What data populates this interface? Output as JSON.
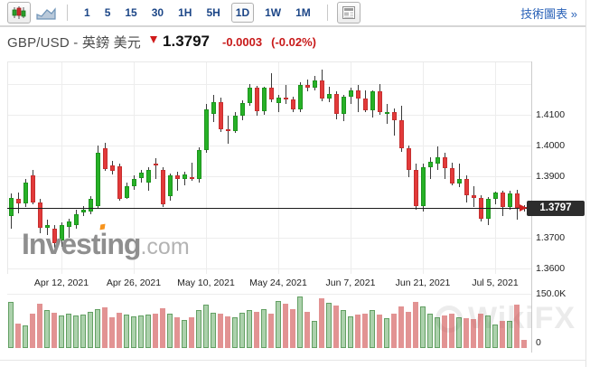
{
  "toolbar": {
    "chart_type": [
      {
        "name": "candlestick",
        "active": true
      },
      {
        "name": "area-line",
        "active": false
      }
    ],
    "timeframes": [
      "1",
      "5",
      "15",
      "30",
      "1H",
      "5H",
      "1D",
      "1W",
      "1M"
    ],
    "active_timeframe": "1D",
    "tech_chart_link": "技術圖表 »"
  },
  "header": {
    "instrument": "GBP/USD - 英鎊 美元",
    "direction": "down",
    "last_price": "1.3797",
    "change": "-0.0003",
    "change_percent": "(-0.02%)"
  },
  "watermarks": {
    "main": "Invest",
    "main_i": "i",
    "main_tail": "ng",
    "main_suffix": ".com",
    "secondary": "WikiFX"
  },
  "colors": {
    "up": "#27b127",
    "up_border": "#1d941d",
    "down": "#e23a3a",
    "down_border": "#c62f2f",
    "wick": "#3a3a3a",
    "vol_up": "rgba(48,140,48,0.40)",
    "vol_up_border": "rgba(40,120,40,0.55)",
    "vol_down": "rgba(206,75,75,0.60)",
    "grid": "#ededed",
    "axis_line": "#cccccc",
    "frame": "#e8e8e8",
    "price_line": "#1a1a1a",
    "tag_bg": "#2d2d2d",
    "accent_red": "#cf1f1f"
  },
  "chart_data": {
    "type": "candlestick+volume",
    "instrument": "GBP/USD",
    "interval": "1D",
    "price_line": {
      "value": 1.3797,
      "label": "1.3797"
    },
    "y_ticks": [
      {
        "label": "1.4100",
        "value": 1.41
      },
      {
        "label": "1.4000",
        "value": 1.4
      },
      {
        "label": "1.3900",
        "value": 1.39
      },
      {
        "label": "1.3700",
        "value": 1.37
      },
      {
        "label": "1.3600",
        "value": 1.36
      }
    ],
    "gridline_values": [
      1.42,
      1.41,
      1.4,
      1.39,
      1.37,
      1.36
    ],
    "x_ticks": [
      {
        "label": "Apr 12, 2021",
        "index": 7
      },
      {
        "label": "Apr 26, 2021",
        "index": 17
      },
      {
        "label": "May 10, 2021",
        "index": 27
      },
      {
        "label": "May 24, 2021",
        "index": 37
      },
      {
        "label": "Jun 7, 2021",
        "index": 47
      },
      {
        "label": "Jun 21, 2021",
        "index": 57
      },
      {
        "label": "Jul 5, 2021",
        "index": 67
      }
    ],
    "volume_ticks": [
      {
        "label": "150.0K",
        "value": 150
      },
      {
        "label": "0",
        "value": 0
      }
    ],
    "volume_axis_max_k": 150,
    "candles": [
      [
        "Apr 1",
        1.377,
        1.3843,
        1.373,
        1.3828,
        128
      ],
      [
        "Apr 2",
        1.3825,
        1.3848,
        1.378,
        1.3812,
        68
      ],
      [
        "Apr 5",
        1.3812,
        1.389,
        1.38,
        1.3879,
        62
      ],
      [
        "Apr 6",
        1.3903,
        1.392,
        1.3808,
        1.3815,
        96
      ],
      [
        "Apr 7",
        1.3815,
        1.3826,
        1.3715,
        1.3732,
        122
      ],
      [
        "Apr 8",
        1.3732,
        1.3758,
        1.371,
        1.374,
        104
      ],
      [
        "Apr 9",
        1.3728,
        1.3742,
        1.3668,
        1.3682,
        98
      ],
      [
        "Apr 12",
        1.369,
        1.3751,
        1.367,
        1.3742,
        90
      ],
      [
        "Apr 13",
        1.3736,
        1.3762,
        1.37,
        1.3753,
        94
      ],
      [
        "Apr 14",
        1.374,
        1.379,
        1.373,
        1.3776,
        90
      ],
      [
        "Apr 15",
        1.3782,
        1.3802,
        1.377,
        1.379,
        92
      ],
      [
        "Apr 16",
        1.3786,
        1.3836,
        1.3775,
        1.3827,
        100
      ],
      [
        "Apr 19",
        1.3803,
        1.3999,
        1.3798,
        1.3976,
        108
      ],
      [
        "Apr 20",
        1.3992,
        1.4009,
        1.3918,
        1.3924,
        112
      ],
      [
        "Apr 21",
        1.3936,
        1.395,
        1.3905,
        1.3918,
        86
      ],
      [
        "Apr 22",
        1.3933,
        1.3941,
        1.382,
        1.3827,
        98
      ],
      [
        "Apr 23",
        1.383,
        1.388,
        1.3825,
        1.3867,
        92
      ],
      [
        "Apr 26",
        1.3867,
        1.3902,
        1.3855,
        1.3891,
        88
      ],
      [
        "Apr 27",
        1.3894,
        1.3922,
        1.388,
        1.3912,
        90
      ],
      [
        "Apr 28",
        1.3878,
        1.3928,
        1.3852,
        1.3921,
        92
      ],
      [
        "Apr 29",
        1.3942,
        1.396,
        1.389,
        1.3935,
        96
      ],
      [
        "Apr 30",
        1.3921,
        1.393,
        1.38,
        1.3809,
        110
      ],
      [
        "May 3",
        1.3836,
        1.391,
        1.382,
        1.3903,
        94
      ],
      [
        "May 4",
        1.3903,
        1.3915,
        1.3852,
        1.389,
        84
      ],
      [
        "May 5",
        1.389,
        1.3914,
        1.387,
        1.3905,
        78
      ],
      [
        "May 6",
        1.3898,
        1.3943,
        1.3885,
        1.3892,
        86
      ],
      [
        "May 7",
        1.3892,
        1.3995,
        1.388,
        1.3984,
        104
      ],
      [
        "May 10",
        1.3985,
        1.4135,
        1.3975,
        1.4118,
        120
      ],
      [
        "May 11",
        1.4102,
        1.4166,
        1.4075,
        1.414,
        98
      ],
      [
        "May 12",
        1.414,
        1.4155,
        1.4045,
        1.4053,
        94
      ],
      [
        "May 13",
        1.4053,
        1.4098,
        1.4005,
        1.4048,
        88
      ],
      [
        "May 14",
        1.4048,
        1.411,
        1.404,
        1.4098,
        86
      ],
      [
        "May 17",
        1.4098,
        1.4148,
        1.4082,
        1.4139,
        98
      ],
      [
        "May 18",
        1.4139,
        1.42,
        1.413,
        1.4187,
        106
      ],
      [
        "May 19",
        1.4187,
        1.4195,
        1.4098,
        1.4113,
        100
      ],
      [
        "May 20",
        1.4113,
        1.4192,
        1.41,
        1.4188,
        108
      ],
      [
        "May 21",
        1.4188,
        1.4235,
        1.4142,
        1.415,
        96
      ],
      [
        "May 24",
        1.4138,
        1.4166,
        1.411,
        1.4157,
        130
      ],
      [
        "May 25",
        1.4157,
        1.4198,
        1.4135,
        1.415,
        122
      ],
      [
        "May 26",
        1.415,
        1.4158,
        1.4108,
        1.4118,
        108
      ],
      [
        "May 27",
        1.4118,
        1.4205,
        1.411,
        1.4197,
        142
      ],
      [
        "May 28",
        1.4197,
        1.4215,
        1.4175,
        1.4188,
        100
      ],
      [
        "May 31",
        1.4188,
        1.4225,
        1.418,
        1.4213,
        76
      ],
      [
        "Jun 1",
        1.4213,
        1.4248,
        1.4145,
        1.4152,
        138
      ],
      [
        "Jun 2",
        1.4152,
        1.419,
        1.414,
        1.4169,
        126
      ],
      [
        "Jun 3",
        1.4169,
        1.4175,
        1.4085,
        1.4103,
        118
      ],
      [
        "Jun 4",
        1.4103,
        1.4165,
        1.408,
        1.4158,
        104
      ],
      [
        "Jun 7",
        1.4158,
        1.4188,
        1.4135,
        1.418,
        88
      ],
      [
        "Jun 8",
        1.418,
        1.4196,
        1.411,
        1.4154,
        92
      ],
      [
        "Jun 9",
        1.4154,
        1.418,
        1.4108,
        1.4115,
        96
      ],
      [
        "Jun 10",
        1.4115,
        1.418,
        1.4092,
        1.4176,
        106
      ],
      [
        "Jun 11",
        1.4176,
        1.42,
        1.41,
        1.4108,
        92
      ],
      [
        "Jun 14",
        1.4108,
        1.4135,
        1.407,
        1.411,
        82
      ],
      [
        "Jun 15",
        1.411,
        1.412,
        1.4032,
        1.4083,
        94
      ],
      [
        "Jun 16",
        1.4083,
        1.413,
        1.398,
        1.3992,
        114
      ],
      [
        "Jun 17",
        1.3992,
        1.4,
        1.3898,
        1.3922,
        100
      ],
      [
        "Jun 18",
        1.3922,
        1.394,
        1.379,
        1.3803,
        128
      ],
      [
        "Jun 21",
        1.3803,
        1.394,
        1.3785,
        1.3928,
        116
      ],
      [
        "Jun 22",
        1.3928,
        1.3963,
        1.389,
        1.3946,
        94
      ],
      [
        "Jun 23",
        1.394,
        1.3998,
        1.392,
        1.3962,
        86
      ],
      [
        "Jun 24",
        1.3962,
        1.3975,
        1.389,
        1.3925,
        90
      ],
      [
        "Jun 25",
        1.3925,
        1.3945,
        1.387,
        1.3877,
        94
      ],
      [
        "Jun 28",
        1.3877,
        1.394,
        1.3866,
        1.389,
        86
      ],
      [
        "Jun 29",
        1.389,
        1.3902,
        1.3815,
        1.3837,
        82
      ],
      [
        "Jun 30",
        1.3837,
        1.3868,
        1.38,
        1.383,
        80
      ],
      [
        "Jul 1",
        1.383,
        1.3838,
        1.3752,
        1.3763,
        96
      ],
      [
        "Jul 2",
        1.3763,
        1.3832,
        1.374,
        1.3826,
        90
      ],
      [
        "Jul 5",
        1.3826,
        1.385,
        1.3808,
        1.3846,
        66
      ],
      [
        "Jul 6",
        1.3846,
        1.3852,
        1.3772,
        1.38,
        76
      ],
      [
        "Jul 7",
        1.38,
        1.3852,
        1.379,
        1.3845,
        74
      ],
      [
        "Jul 8",
        1.3845,
        1.3856,
        1.3758,
        1.3797,
        120
      ],
      [
        "Jul 9",
        1.38,
        1.3806,
        1.3786,
        1.3797,
        22
      ]
    ]
  }
}
